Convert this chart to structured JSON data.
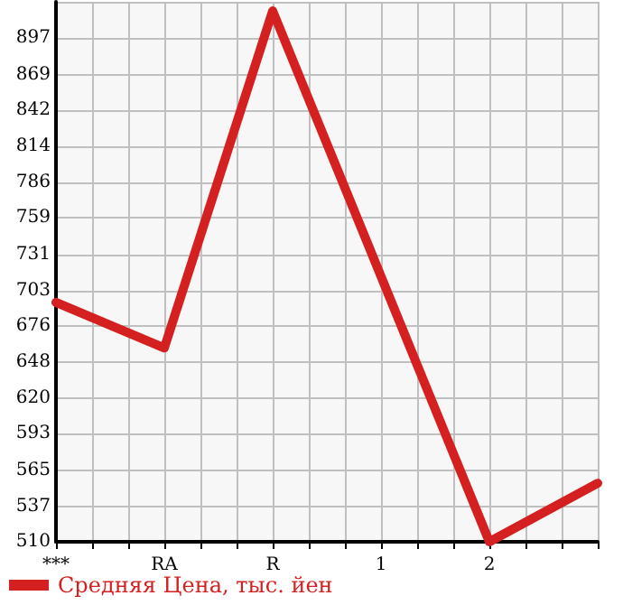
{
  "chart_data": {
    "type": "line",
    "categories": [
      "***",
      "RA",
      "R",
      "1",
      "2",
      null
    ],
    "series": [
      {
        "name": "Средняя Цена, тыс. йен",
        "color": "#d42020",
        "values": [
          694,
          659,
          918,
          714,
          510,
          555
        ]
      }
    ],
    "ylim": [
      510,
      925
    ],
    "yticks": [
      510,
      537,
      565,
      593,
      620,
      648,
      676,
      703,
      731,
      759,
      786,
      814,
      842,
      869,
      897,
      {
        "value": 925,
        "label": null
      }
    ],
    "grid": true,
    "legend": "bottom left",
    "marker": "none",
    "line_style": "solid"
  }
}
